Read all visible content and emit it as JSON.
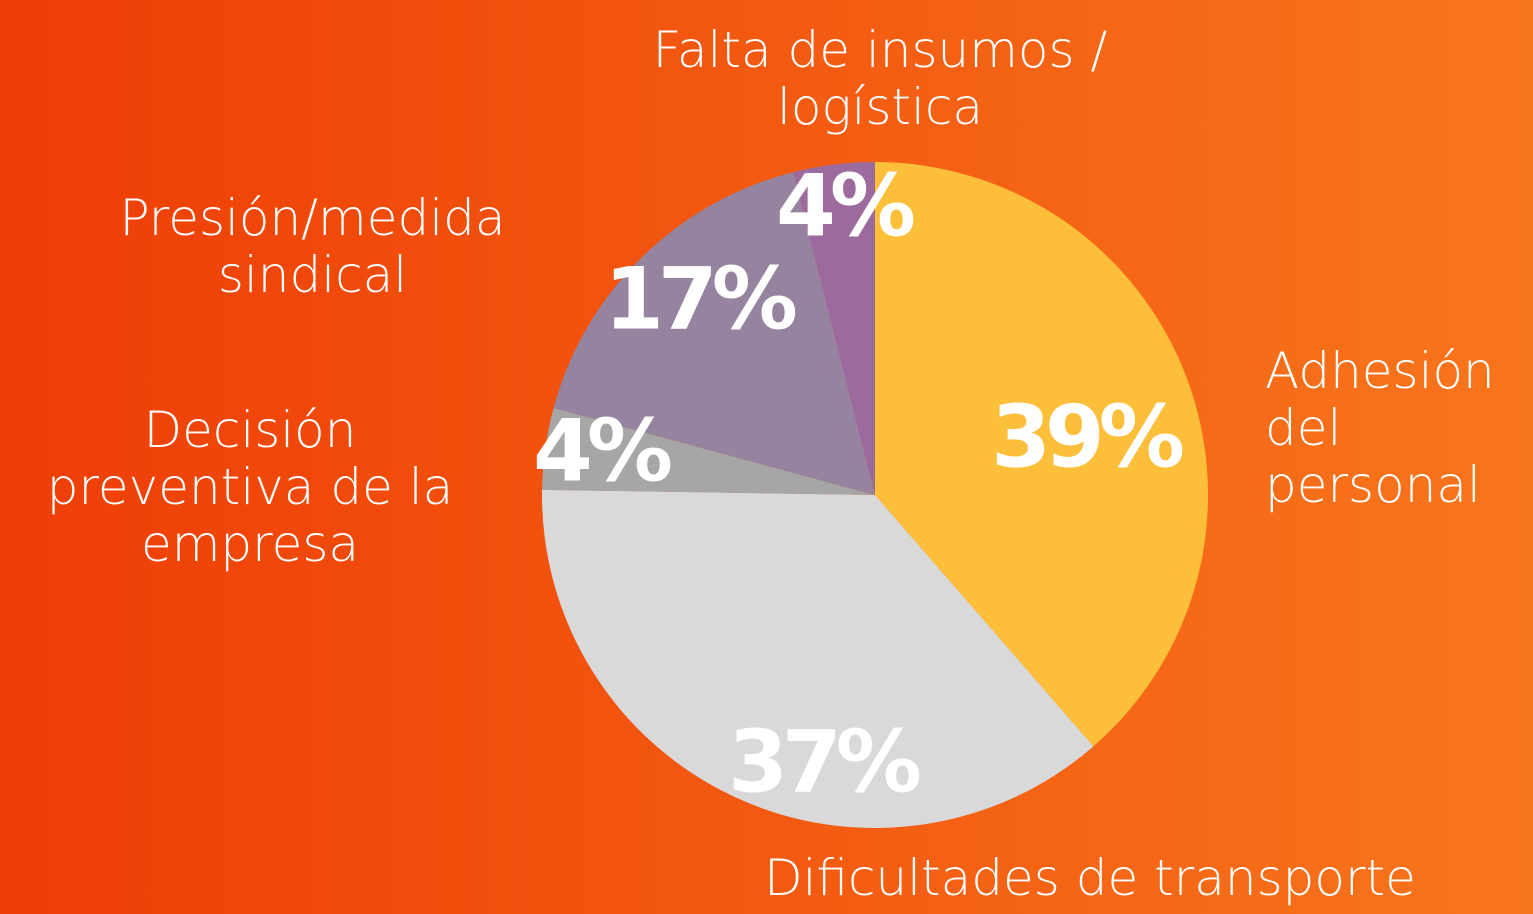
{
  "chart_data": {
    "type": "pie",
    "categories": [
      "Adhesión del personal",
      "Dificultades de transporte",
      "Decisión preventiva de la empresa",
      "Presión/medida sindical",
      "Falta de insumos / logística"
    ],
    "values": [
      39,
      37,
      4,
      17,
      4
    ],
    "value_labels": [
      "39%",
      "37%",
      "4%",
      "17%",
      "4%"
    ],
    "colors": [
      "#FDBE3A",
      "#D9D9D9",
      "#A6A6A6",
      "#9683A0",
      "#9D6A9E"
    ]
  }
}
